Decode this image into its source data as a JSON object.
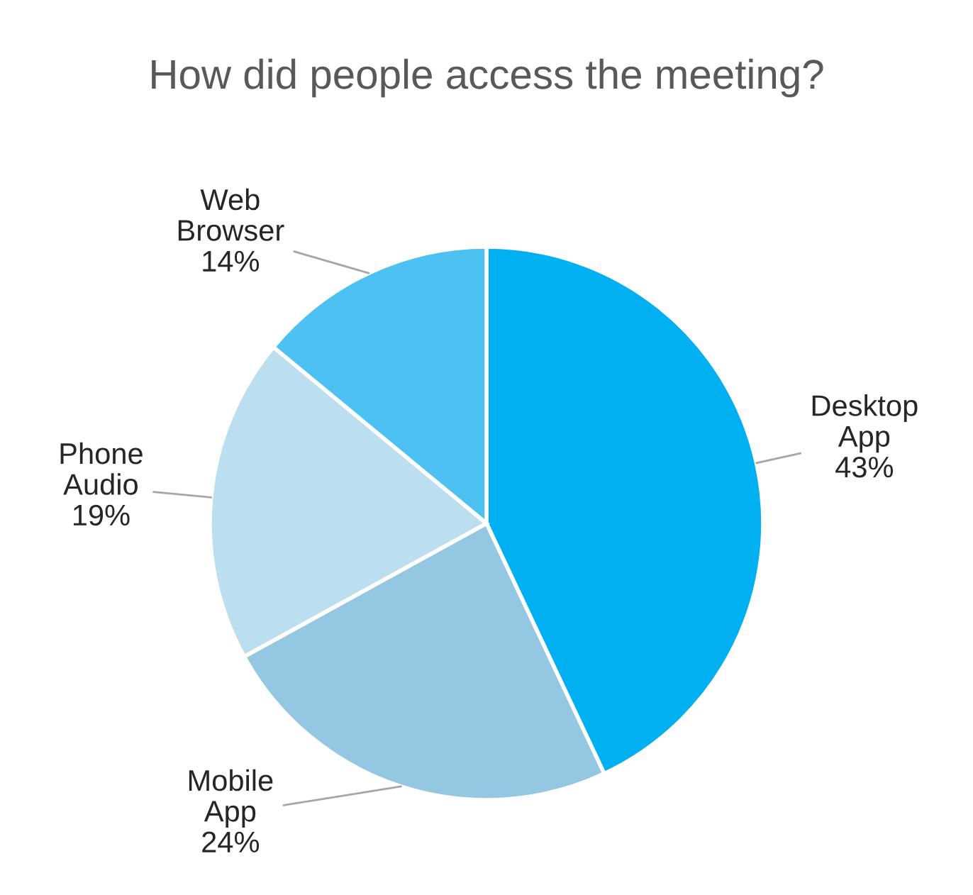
{
  "chart_data": {
    "type": "pie",
    "title": "How did people access the meeting?",
    "categories": [
      "Desktop App",
      "Mobile App",
      "Phone Audio",
      "Web Browser"
    ],
    "values": [
      43,
      24,
      19,
      14
    ],
    "value_labels": [
      "43%",
      "24%",
      "19%",
      "14%"
    ],
    "colors": [
      "#00b0f0",
      "#93c7e2",
      "#bcdff0",
      "#4dc1f1"
    ],
    "legend": false
  }
}
